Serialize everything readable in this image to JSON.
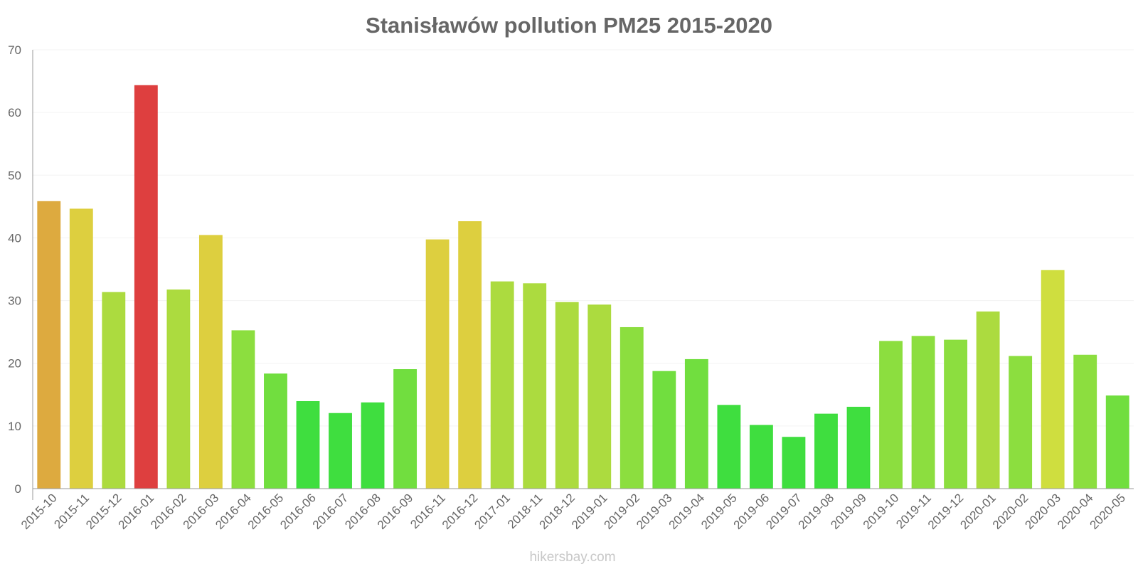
{
  "chart_data": {
    "type": "bar",
    "title": "Stanisławów pollution PM25 2015-2020",
    "xlabel": "",
    "ylabel": "",
    "ylim": [
      0,
      70
    ],
    "yticks": [
      0,
      10,
      20,
      30,
      40,
      50,
      60,
      70
    ],
    "grid": true,
    "legend": "none",
    "categories": [
      "2015-10",
      "2015-11",
      "2015-12",
      "2016-01",
      "2016-02",
      "2016-03",
      "2016-04",
      "2016-05",
      "2016-06",
      "2016-07",
      "2016-08",
      "2016-09",
      "2016-11",
      "2016-12",
      "2017-01",
      "2018-11",
      "2018-12",
      "2019-01",
      "2019-02",
      "2019-03",
      "2019-04",
      "2019-05",
      "2019-06",
      "2019-07",
      "2019-08",
      "2019-09",
      "2019-10",
      "2019-11",
      "2019-12",
      "2020-01",
      "2020-02",
      "2020-03",
      "2020-04",
      "2020-05"
    ],
    "values": [
      45.8,
      44.6,
      31.3,
      64.3,
      31.7,
      40.4,
      25.2,
      18.3,
      13.9,
      12.0,
      13.7,
      19.0,
      39.7,
      42.6,
      33.0,
      32.7,
      29.7,
      29.3,
      25.7,
      18.7,
      20.6,
      13.3,
      10.1,
      8.2,
      11.9,
      13.0,
      23.5,
      24.3,
      23.7,
      28.2,
      21.1,
      34.8,
      21.3,
      14.8
    ],
    "colors": [
      "#dba535",
      "#dbcc35",
      "#a8d935",
      "#dc3535",
      "#a8d935",
      "#dbcc35",
      "#86dc35",
      "#69dc35",
      "#35dc35",
      "#35dc35",
      "#35dc35",
      "#69dc35",
      "#dbcc35",
      "#dbcc35",
      "#a8d935",
      "#a8d935",
      "#a8d935",
      "#a8d935",
      "#86dc35",
      "#69dc35",
      "#69dc35",
      "#35dc35",
      "#35dc35",
      "#35dc35",
      "#35dc35",
      "#35dc35",
      "#86dc35",
      "#86dc35",
      "#86dc35",
      "#a8d935",
      "#86dc35",
      "#ccdc35",
      "#86dc35",
      "#69dc35"
    ]
  },
  "watermark": "hikersbay.com"
}
